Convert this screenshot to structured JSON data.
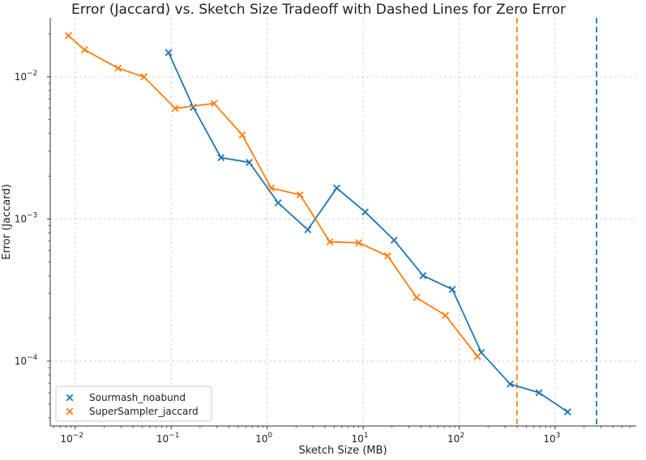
{
  "chart_data": {
    "type": "line",
    "title": "Error (Jaccard) vs. Sketch Size Tradeoff with Dashed Lines for Zero Error",
    "xlabel": "Sketch Size (MB)",
    "ylabel": "Error (Jaccard)",
    "xscale": "log",
    "yscale": "log",
    "xlim": [
      0.0055,
      7000
    ],
    "ylim": [
      3.5e-05,
      0.026
    ],
    "grid": true,
    "legend_position": "bottom-left",
    "x_ticks": [
      {
        "value": 0.01,
        "base": "10",
        "exp": "−2"
      },
      {
        "value": 0.1,
        "base": "10",
        "exp": "−1"
      },
      {
        "value": 1,
        "base": "10",
        "exp": "0"
      },
      {
        "value": 10,
        "base": "10",
        "exp": "1"
      },
      {
        "value": 100,
        "base": "10",
        "exp": "2"
      },
      {
        "value": 1000,
        "base": "10",
        "exp": "3"
      }
    ],
    "y_ticks": [
      {
        "value": 0.0001,
        "base": "10",
        "exp": "−4"
      },
      {
        "value": 0.001,
        "base": "10",
        "exp": "−3"
      },
      {
        "value": 0.01,
        "base": "10",
        "exp": "−2"
      }
    ],
    "series": [
      {
        "name": "Sourmash_noabund",
        "color": "#1f77b4",
        "marker": "x",
        "x": [
          0.094,
          0.17,
          0.33,
          0.65,
          1.3,
          2.65,
          5.3,
          10.5,
          21,
          42,
          85,
          170,
          340,
          680,
          1350
        ],
        "y": [
          0.0148,
          0.0061,
          0.0027,
          0.0025,
          0.0013,
          0.00084,
          0.00165,
          0.00112,
          0.00071,
          0.0004,
          0.00032,
          0.000115,
          6.9e-05,
          6e-05,
          4.4e-05
        ],
        "zero_error_size": 2700
      },
      {
        "name": "SuperSampler_jaccard",
        "color": "#ff7f0e",
        "marker": "x",
        "x": [
          0.0085,
          0.0125,
          0.028,
          0.052,
          0.11,
          0.28,
          0.55,
          1.1,
          2.2,
          4.5,
          9,
          18,
          36,
          72,
          155
        ],
        "y": [
          0.0195,
          0.0155,
          0.0115,
          0.01,
          0.006,
          0.0065,
          0.0039,
          0.00165,
          0.00148,
          0.00069,
          0.00068,
          0.00055,
          0.00028,
          0.00021,
          0.000108
        ],
        "zero_error_size": 400
      }
    ]
  }
}
